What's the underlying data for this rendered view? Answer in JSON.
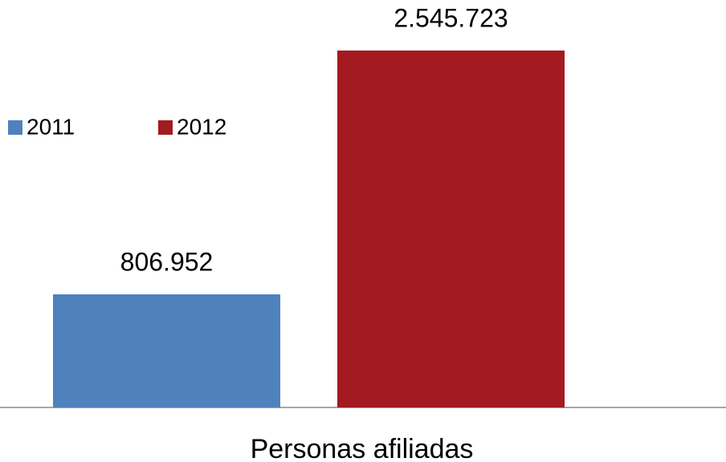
{
  "chart_data": {
    "type": "bar",
    "categories": [
      "Personas afiliadas"
    ],
    "series": [
      {
        "name": "2011",
        "color": "#4f81bd",
        "values": [
          806952
        ],
        "value_labels": [
          "806.952"
        ]
      },
      {
        "name": "2012",
        "color": "#a31a20",
        "values": [
          2545723
        ],
        "value_labels": [
          "2.545.723"
        ]
      }
    ],
    "ylim": [
      0,
      3000000
    ]
  }
}
